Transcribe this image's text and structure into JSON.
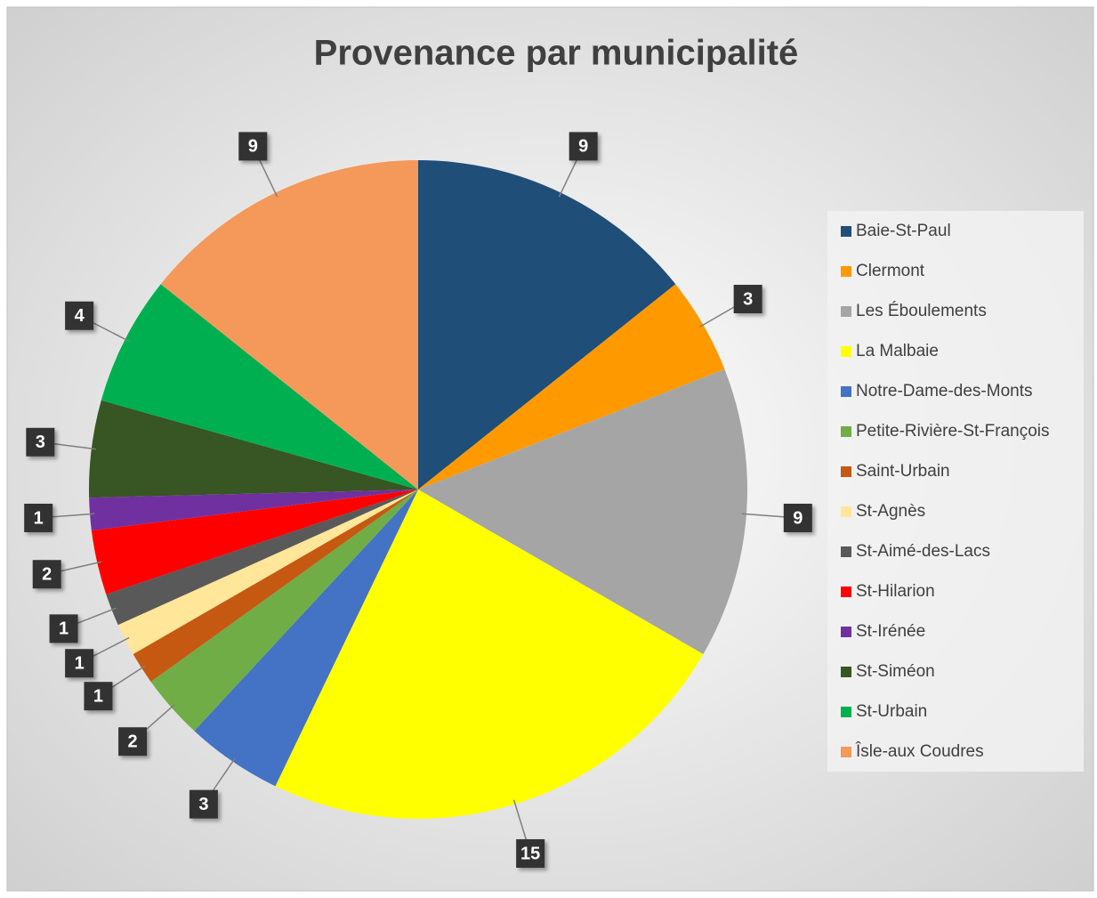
{
  "chart_data": {
    "type": "pie",
    "title": "Provenance par municipalité",
    "categories": [
      "Baie-St-Paul",
      "Clermont",
      "Les Éboulements",
      "La Malbaie",
      "Notre-Dame-des-Monts",
      "Petite-Rivière-St-François",
      "Saint-Urbain",
      "St-Agnès",
      "St-Aimé-des-Lacs",
      "St-Hilarion",
      "St-Irénée",
      "St-Siméon",
      "St-Urbain",
      "Îsle-aux Coudres"
    ],
    "values": [
      9,
      3,
      9,
      15,
      3,
      2,
      1,
      1,
      1,
      2,
      1,
      3,
      4,
      9
    ],
    "colors": [
      "#1f4e79",
      "#ff9900",
      "#a5a5a5",
      "#ffff00",
      "#4472c4",
      "#70ad47",
      "#c65911",
      "#ffe699",
      "#595959",
      "#ff0000",
      "#7030a0",
      "#375623",
      "#00b050",
      "#f4995a"
    ],
    "legend": "right"
  }
}
